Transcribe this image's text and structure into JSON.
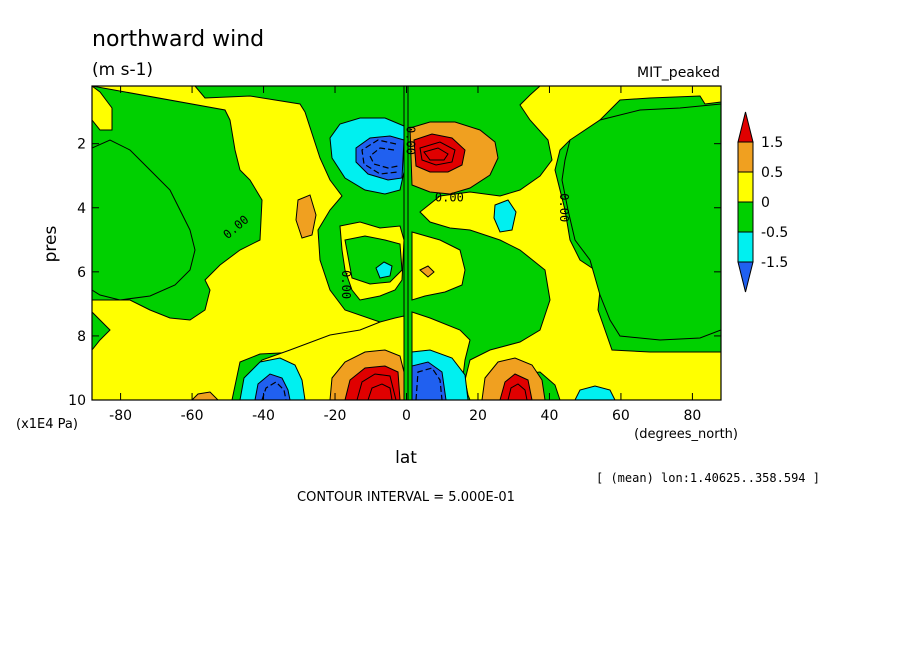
{
  "chart_data": {
    "type": "contour",
    "title": "northward wind",
    "units": "(m s-1)",
    "dataset": "MIT_peaked",
    "xlabel": "lat",
    "x_units": "(degrees_north)",
    "ylabel": "pres",
    "y_units": "(x1E4 Pa)",
    "xlim": [
      -88,
      88
    ],
    "ylim": [
      10,
      0.2
    ],
    "y_reversed": true,
    "x_ticks": [
      -80,
      -60,
      -40,
      -20,
      0,
      20,
      40,
      60,
      80
    ],
    "x_tick_labels": [
      "-80",
      "-60",
      "-40",
      "-20",
      "0",
      "20",
      "40",
      "60",
      "80"
    ],
    "y_ticks": [
      2,
      4,
      6,
      8,
      10
    ],
    "y_tick_labels": [
      "2",
      "4",
      "6",
      "8",
      "10"
    ],
    "contour_interval_text": "CONTOUR INTERVAL = 5.000E-01",
    "averaging_text": "[ (mean) lon:1.40625..358.594 ]",
    "contour_labels": [
      {
        "text": "0.00",
        "lat": -47,
        "pres": 4.7,
        "rotate": -40
      },
      {
        "text": "0.00",
        "lat": -18,
        "pres": 6.4,
        "rotate": 90
      },
      {
        "text": "0.00",
        "lat": 12,
        "pres": 3.8,
        "rotate": 0
      },
      {
        "text": "0.00",
        "lat": 43,
        "pres": 4.0,
        "rotate": 90
      },
      {
        "text": "0.00",
        "lat": 0,
        "pres": 1.9,
        "rotate": 90
      }
    ],
    "colorbar": {
      "labels": [
        "1.5",
        "0.5",
        "0",
        "-0.5",
        "-1.5"
      ],
      "colors": [
        "#e00000",
        "#f0a020",
        "#ffff00",
        "#00d000",
        "#00f0f0",
        "#2060f0"
      ]
    },
    "features": [
      {
        "name": "upper negative cell",
        "lat": -8,
        "pres": 2.5,
        "sign": "negative",
        "min_approx": -2.0
      },
      {
        "name": "upper positive cell",
        "lat": 7,
        "pres": 2.4,
        "sign": "positive",
        "max_approx": 2.0
      },
      {
        "name": "lower positive cell",
        "lat": -6,
        "pres": 9.6,
        "sign": "positive",
        "max_approx": 2.5
      },
      {
        "name": "lower negative cell",
        "lat": 7,
        "pres": 9.6,
        "sign": "negative",
        "min_approx": -2.5
      },
      {
        "name": "lower negative cell",
        "lat": -33,
        "pres": 9.6,
        "sign": "negative",
        "min_approx": -1.5
      },
      {
        "name": "lower positive cell",
        "lat": 30,
        "pres": 9.7,
        "sign": "positive",
        "max_approx": 1.5
      },
      {
        "name": "lower negative cell",
        "lat": 54,
        "pres": 9.8,
        "sign": "negative",
        "min_approx": -0.7
      }
    ]
  }
}
